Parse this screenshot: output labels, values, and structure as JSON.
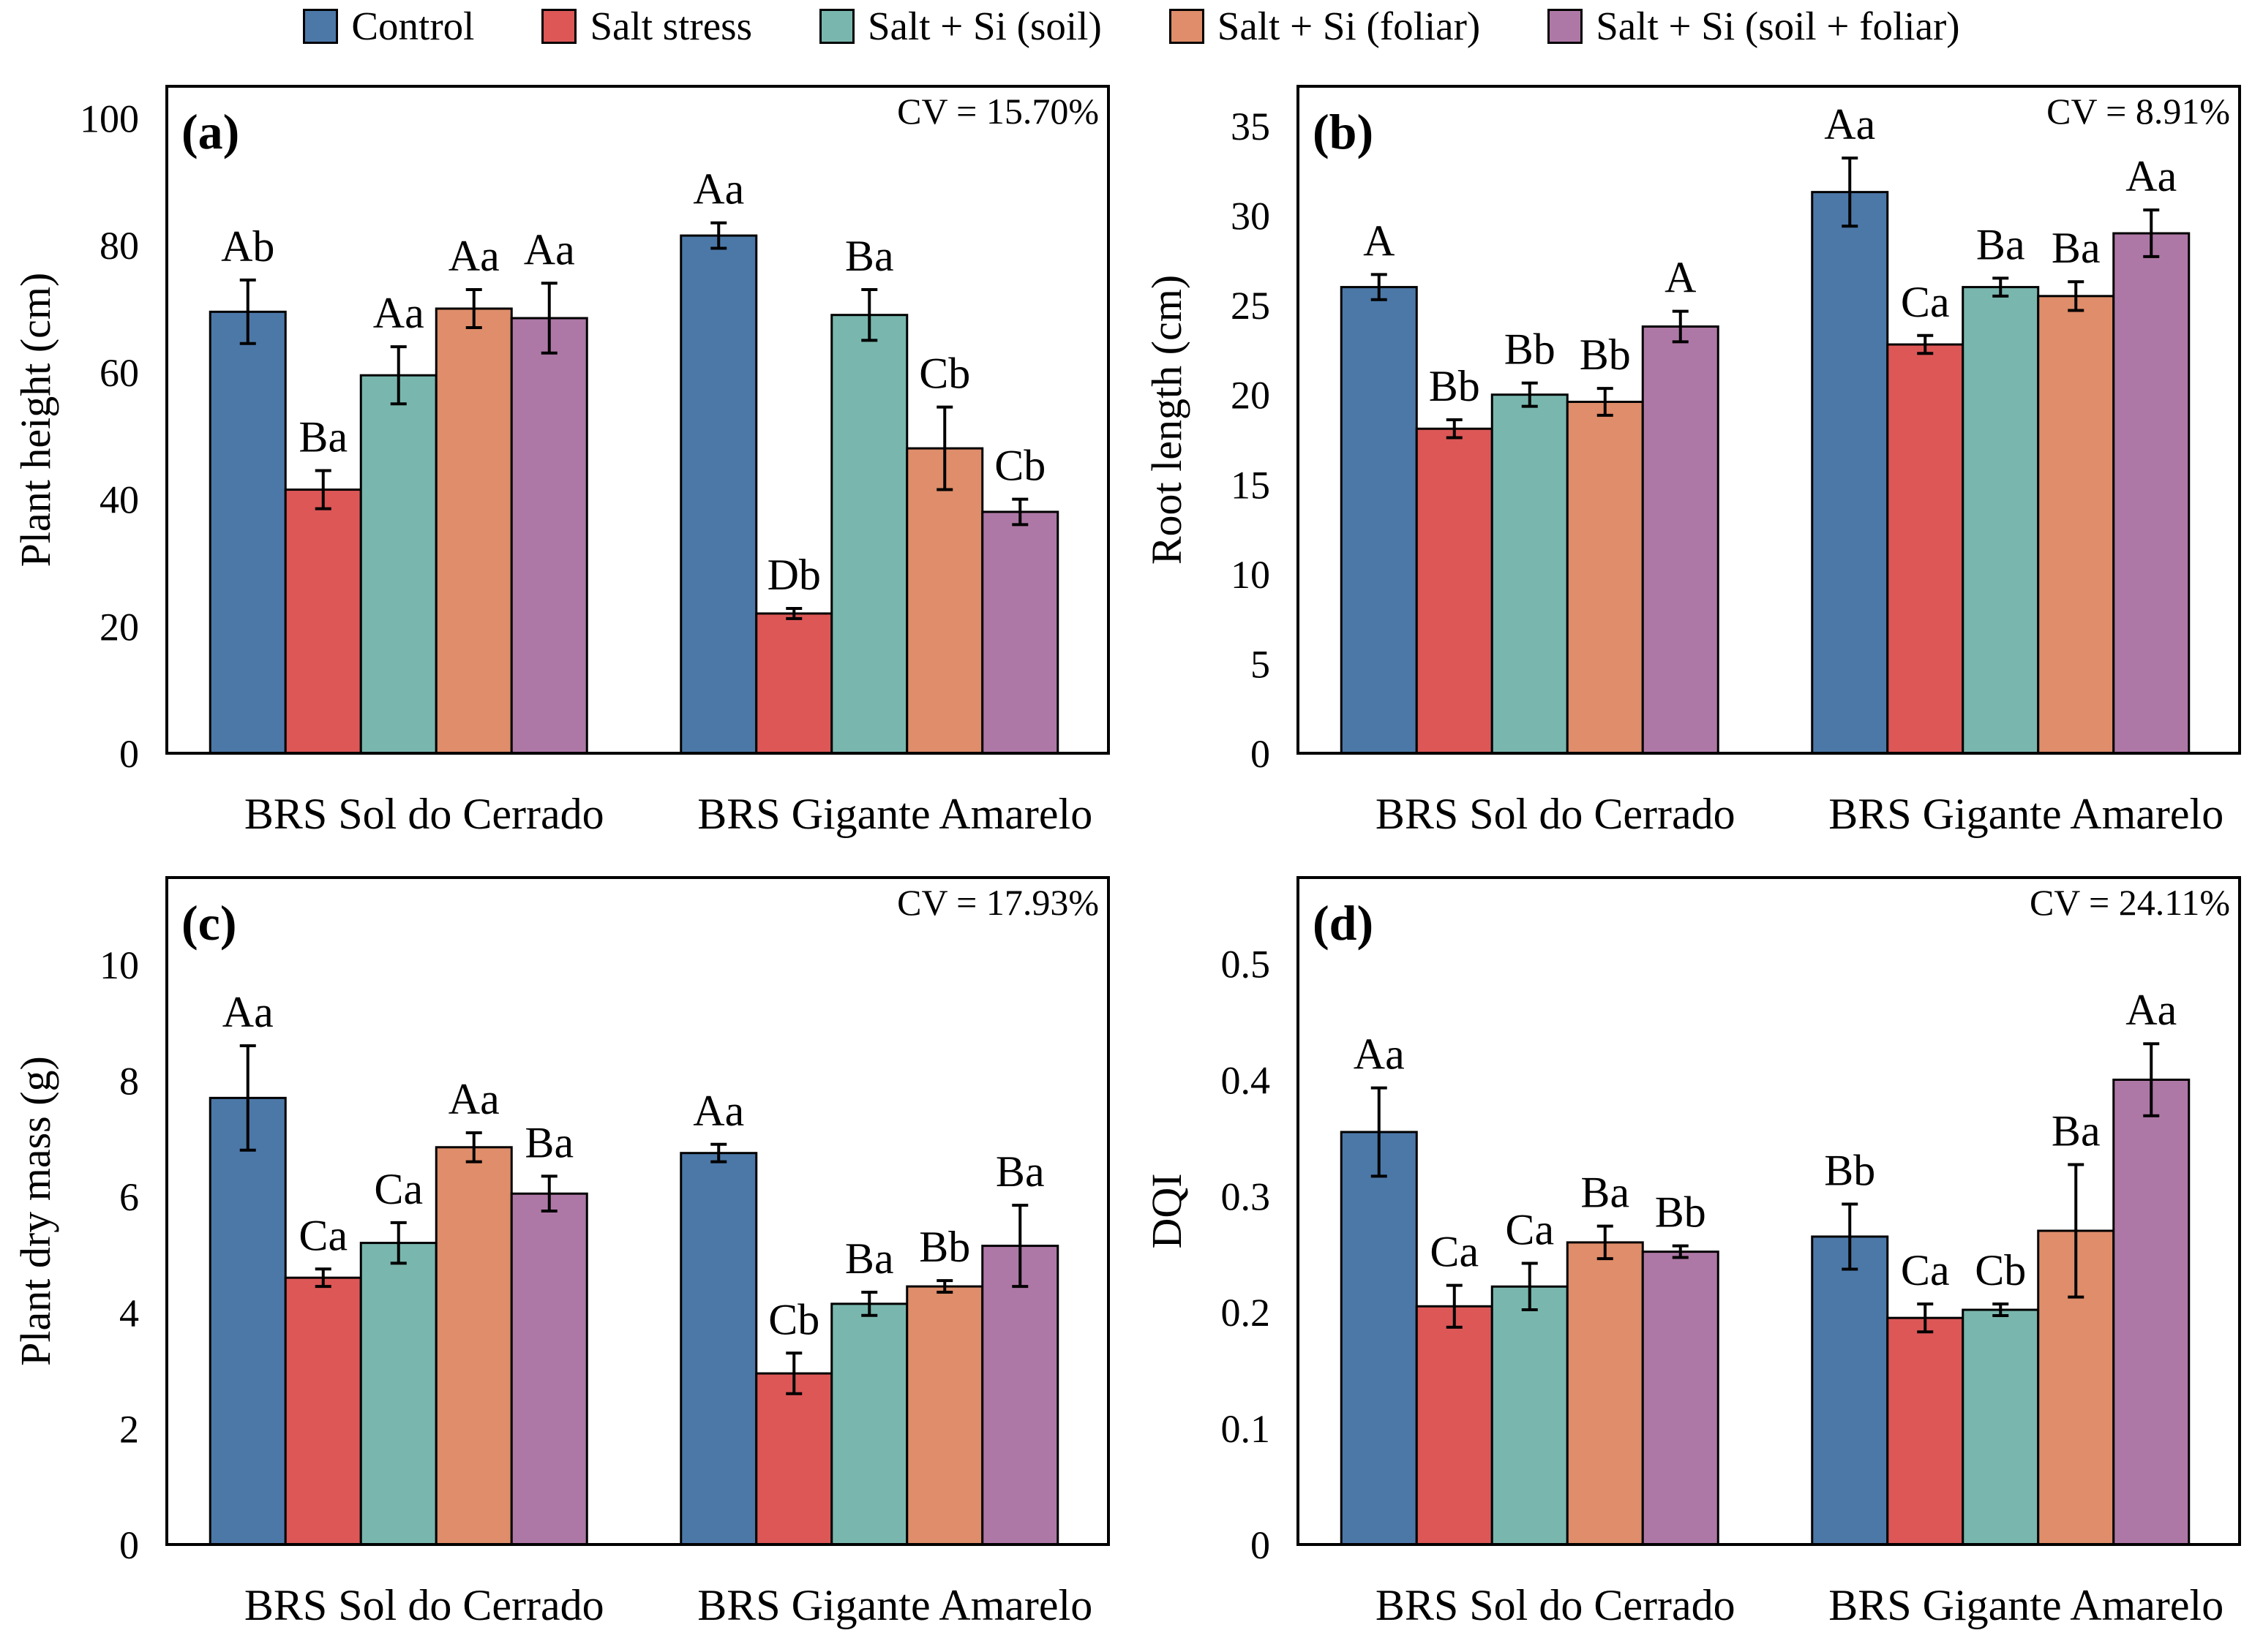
{
  "figure": {
    "legend": {
      "items": [
        {
          "label": "Control",
          "color": "#4c78a8"
        },
        {
          "label": "Salt stress",
          "color": "#dd5757"
        },
        {
          "label": "Salt + Si (soil)",
          "color": "#79b7ae"
        },
        {
          "label": "Salt + Si (foliar)",
          "color": "#df8d6a"
        },
        {
          "label": "Salt + Si (soil + foliar)",
          "color": "#ae78a6"
        }
      ]
    },
    "colors": {
      "bar_outline": "#000000",
      "error_bar": "#000000",
      "axis": "#000000"
    }
  },
  "chart_data": [
    {
      "type": "bar",
      "panel_label": "(a)",
      "cv_label": "CV = 15.70%",
      "ylabel": "Plant height (cm)",
      "yticks": [
        0,
        20,
        40,
        60,
        80,
        100
      ],
      "ylim": [
        0,
        100
      ],
      "ymax_plot": 105,
      "grid": false,
      "legend_position": "shared-top",
      "categories": [
        "BRS Sol do Cerrado",
        "BRS Gigante Amarelo"
      ],
      "series": [
        {
          "name": "Control",
          "color": "#4c78a8",
          "values": [
            69.5,
            81.5
          ],
          "errors": [
            5,
            2
          ],
          "letters": [
            "Ab",
            "Aa"
          ]
        },
        {
          "name": "Salt stress",
          "color": "#dd5757",
          "values": [
            41.5,
            22
          ],
          "errors": [
            3,
            0.8
          ],
          "letters": [
            "Ba",
            "Db"
          ]
        },
        {
          "name": "Salt + Si (soil)",
          "color": "#79b7ae",
          "values": [
            59.5,
            69
          ],
          "errors": [
            4.5,
            4
          ],
          "letters": [
            "Aa",
            "Ba"
          ]
        },
        {
          "name": "Salt + Si (foliar)",
          "color": "#df8d6a",
          "values": [
            70,
            48
          ],
          "errors": [
            3,
            6.5
          ],
          "letters": [
            "Aa",
            "Cb"
          ]
        },
        {
          "name": "Salt + Si (soil + foliar)",
          "color": "#ae78a6",
          "values": [
            68.5,
            38
          ],
          "errors": [
            5.5,
            2
          ],
          "letters": [
            "Aa",
            "Cb"
          ]
        }
      ]
    },
    {
      "type": "bar",
      "panel_label": "(b)",
      "cv_label": "CV = 8.91%",
      "ylabel": "Root length (cm)",
      "yticks": [
        0,
        5,
        10,
        15,
        20,
        25,
        30,
        35
      ],
      "ylim": [
        0,
        35
      ],
      "ymax_plot": 37.2,
      "grid": false,
      "legend_position": "shared-top",
      "categories": [
        "BRS Sol do Cerrado",
        "BRS Gigante Amarelo"
      ],
      "series": [
        {
          "name": "Control",
          "color": "#4c78a8",
          "values": [
            26,
            31.3
          ],
          "errors": [
            0.7,
            1.9
          ],
          "letters": [
            "A",
            "Aa"
          ]
        },
        {
          "name": "Salt stress",
          "color": "#dd5757",
          "values": [
            18.1,
            22.8
          ],
          "errors": [
            0.5,
            0.5
          ],
          "letters": [
            "Bb",
            "Ca"
          ]
        },
        {
          "name": "Salt + Si (soil)",
          "color": "#79b7ae",
          "values": [
            20,
            26
          ],
          "errors": [
            0.65,
            0.5
          ],
          "letters": [
            "Bb",
            "Ba"
          ]
        },
        {
          "name": "Salt + Si (foliar)",
          "color": "#df8d6a",
          "values": [
            19.6,
            25.5
          ],
          "errors": [
            0.75,
            0.8
          ],
          "letters": [
            "Bb",
            "Ba"
          ]
        },
        {
          "name": "Salt + Si (soil + foliar)",
          "color": "#ae78a6",
          "values": [
            23.8,
            29
          ],
          "errors": [
            0.85,
            1.3
          ],
          "letters": [
            "A",
            "Aa"
          ]
        }
      ]
    },
    {
      "type": "bar",
      "panel_label": "(c)",
      "cv_label": "CV = 17.93%",
      "ylabel": "Plant dry mass (g)",
      "yticks": [
        0,
        2,
        4,
        6,
        8,
        10
      ],
      "ylim": [
        0,
        10
      ],
      "ymax_plot": 11.5,
      "grid": false,
      "legend_position": "shared-top",
      "categories": [
        "BRS Sol do Cerrado",
        "BRS Gigante Amarelo"
      ],
      "series": [
        {
          "name": "Control",
          "color": "#4c78a8",
          "values": [
            7.7,
            6.75
          ],
          "errors": [
            0.9,
            0.15
          ],
          "letters": [
            "Aa",
            "Aa"
          ]
        },
        {
          "name": "Salt stress",
          "color": "#dd5757",
          "values": [
            4.6,
            2.95
          ],
          "errors": [
            0.15,
            0.35
          ],
          "letters": [
            "Ca",
            "Cb"
          ]
        },
        {
          "name": "Salt + Si (soil)",
          "color": "#79b7ae",
          "values": [
            5.2,
            4.15
          ],
          "errors": [
            0.35,
            0.2
          ],
          "letters": [
            "Ca",
            "Ba"
          ]
        },
        {
          "name": "Salt + Si (foliar)",
          "color": "#df8d6a",
          "values": [
            6.85,
            4.45
          ],
          "errors": [
            0.25,
            0.1
          ],
          "letters": [
            "Aa",
            "Bb"
          ]
        },
        {
          "name": "Salt + Si (soil + foliar)",
          "color": "#ae78a6",
          "values": [
            6.05,
            5.15
          ],
          "errors": [
            0.3,
            0.7
          ],
          "letters": [
            "Ba",
            "Ba"
          ]
        }
      ]
    },
    {
      "type": "bar",
      "panel_label": "(d)",
      "cv_label": "CV = 24.11%",
      "ylabel": "DQI",
      "yticks": [
        0,
        0.1,
        0.2,
        0.3,
        0.4,
        0.5
      ],
      "ylim": [
        0,
        0.5
      ],
      "ymax_plot": 0.574,
      "grid": false,
      "legend_position": "shared-top",
      "categories": [
        "BRS Sol do Cerrado",
        "BRS Gigante Amarelo"
      ],
      "series": [
        {
          "name": "Control",
          "color": "#4c78a8",
          "values": [
            0.355,
            0.265
          ],
          "errors": [
            0.038,
            0.028
          ],
          "letters": [
            "Aa",
            "Bb"
          ]
        },
        {
          "name": "Salt stress",
          "color": "#dd5757",
          "values": [
            0.205,
            0.195
          ],
          "errors": [
            0.018,
            0.012
          ],
          "letters": [
            "Ca",
            "Ca"
          ]
        },
        {
          "name": "Salt + Si (soil)",
          "color": "#79b7ae",
          "values": [
            0.222,
            0.202
          ],
          "errors": [
            0.02,
            0.005
          ],
          "letters": [
            "Ca",
            "Cb"
          ]
        },
        {
          "name": "Salt + Si (foliar)",
          "color": "#df8d6a",
          "values": [
            0.26,
            0.27
          ],
          "errors": [
            0.014,
            0.057
          ],
          "letters": [
            "Ba",
            "Ba"
          ]
        },
        {
          "name": "Salt + Si (soil + foliar)",
          "color": "#ae78a6",
          "values": [
            0.252,
            0.4
          ],
          "errors": [
            0.005,
            0.031
          ],
          "letters": [
            "Bb",
            "Aa"
          ]
        }
      ]
    }
  ]
}
